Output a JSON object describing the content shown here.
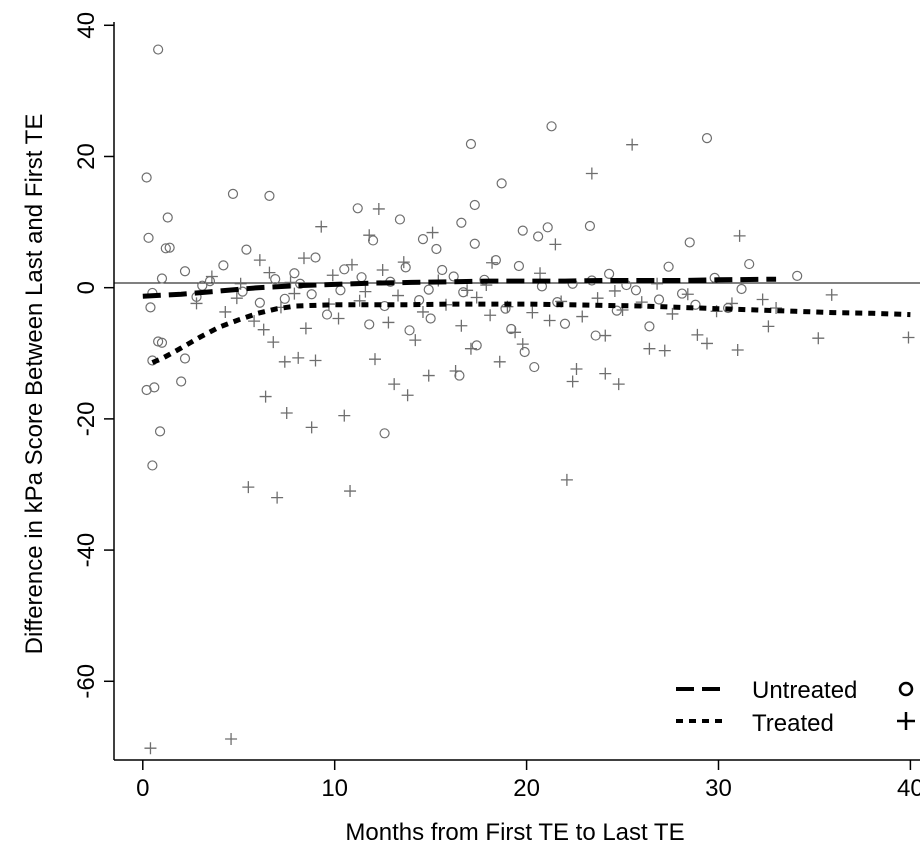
{
  "chart_data": {
    "type": "scatter",
    "title": "",
    "xlabel": "Months from First TE to Last TE",
    "ylabel": "Difference in kPa Score Between Last and First TE",
    "xlim": [
      -1.5,
      40.5
    ],
    "ylim": [
      -72,
      40.5
    ],
    "xticks": [
      "0",
      "10",
      "20",
      "30",
      "40"
    ],
    "yticks": [
      "40",
      "20",
      "0",
      "-20",
      "-40",
      "-60"
    ],
    "reference_line_y": 0,
    "grid": false,
    "legend": {
      "placement": "bottom-right"
    },
    "series": [
      {
        "name": "Untreated",
        "marker": "circle",
        "line_style": "long-dash",
        "points": [
          [
            0.8,
            36.3
          ],
          [
            21.3,
            24.6
          ],
          [
            29.4,
            22.8
          ],
          [
            17.1,
            21.9
          ],
          [
            0.2,
            16.8
          ],
          [
            18.7,
            15.9
          ],
          [
            4.7,
            14.3
          ],
          [
            6.6,
            14.0
          ],
          [
            11.2,
            12.1
          ],
          [
            17.3,
            12.6
          ],
          [
            1.3,
            10.7
          ],
          [
            13.4,
            10.4
          ],
          [
            16.6,
            9.9
          ],
          [
            23.3,
            9.4
          ],
          [
            19.8,
            8.7
          ],
          [
            21.1,
            9.2
          ],
          [
            12.0,
            7.2
          ],
          [
            0.3,
            7.6
          ],
          [
            28.5,
            6.9
          ],
          [
            14.6,
            7.4
          ],
          [
            1.2,
            6.0
          ],
          [
            1.4,
            6.1
          ],
          [
            17.3,
            6.7
          ],
          [
            20.6,
            7.8
          ],
          [
            5.4,
            5.8
          ],
          [
            15.3,
            5.9
          ],
          [
            18.4,
            4.2
          ],
          [
            31.6,
            3.6
          ],
          [
            34.1,
            1.8
          ],
          [
            24.3,
            2.1
          ],
          [
            4.2,
            3.4
          ],
          [
            9.0,
            4.6
          ],
          [
            0.5,
            -0.8
          ],
          [
            1.0,
            1.4
          ],
          [
            2.2,
            2.5
          ],
          [
            3.5,
            1.0
          ],
          [
            7.9,
            2.2
          ],
          [
            11.4,
            1.6
          ],
          [
            13.7,
            3.1
          ],
          [
            15.6,
            2.7
          ],
          [
            17.8,
            1.2
          ],
          [
            19.6,
            3.3
          ],
          [
            22.4,
            0.6
          ],
          [
            25.7,
            -0.4
          ],
          [
            27.4,
            3.2
          ],
          [
            29.8,
            1.5
          ],
          [
            31.2,
            -0.2
          ],
          [
            2.8,
            -1.4
          ],
          [
            6.1,
            -2.3
          ],
          [
            8.8,
            -1.0
          ],
          [
            12.6,
            -2.8
          ],
          [
            14.4,
            -1.9
          ],
          [
            16.7,
            -0.7
          ],
          [
            18.9,
            -3.2
          ],
          [
            21.6,
            -2.2
          ],
          [
            24.7,
            -3.5
          ],
          [
            26.9,
            -1.8
          ],
          [
            28.8,
            -2.6
          ],
          [
            30.5,
            -3.1
          ],
          [
            0.4,
            -3.0
          ],
          [
            0.2,
            -15.6
          ],
          [
            0.5,
            -11.1
          ],
          [
            0.8,
            -8.2
          ],
          [
            1.0,
            -8.4
          ],
          [
            0.6,
            -15.2
          ],
          [
            0.5,
            -27.1
          ],
          [
            0.9,
            -21.9
          ],
          [
            2.0,
            -14.3
          ],
          [
            2.2,
            -10.8
          ],
          [
            19.9,
            -9.8
          ],
          [
            20.4,
            -12.1
          ],
          [
            23.6,
            -7.3
          ],
          [
            16.5,
            -13.4
          ],
          [
            17.4,
            -8.8
          ],
          [
            12.6,
            -22.2
          ],
          [
            11.8,
            -5.6
          ],
          [
            13.9,
            -6.5
          ],
          [
            9.6,
            -4.1
          ],
          [
            15.0,
            -4.7
          ],
          [
            19.2,
            -6.3
          ],
          [
            22.0,
            -5.5
          ],
          [
            26.4,
            -5.9
          ],
          [
            8.2,
            0.6
          ],
          [
            10.3,
            -0.4
          ],
          [
            10.5,
            2.8
          ],
          [
            12.9,
            0.9
          ],
          [
            14.9,
            -0.3
          ],
          [
            16.2,
            1.7
          ],
          [
            20.8,
            0.2
          ],
          [
            23.4,
            1.1
          ],
          [
            25.2,
            0.4
          ],
          [
            28.1,
            -0.9
          ],
          [
            6.9,
            1.3
          ],
          [
            5.2,
            -0.6
          ],
          [
            3.1,
            0.3
          ],
          [
            7.4,
            -1.7
          ]
        ],
        "trend": [
          [
            0,
            -1.3
          ],
          [
            2,
            -1.0
          ],
          [
            4,
            -0.5
          ],
          [
            6,
            0.0
          ],
          [
            8,
            0.3
          ],
          [
            10,
            0.5
          ],
          [
            12,
            0.7
          ],
          [
            14,
            0.8
          ],
          [
            16,
            0.9
          ],
          [
            18,
            1.0
          ],
          [
            20,
            1.0
          ],
          [
            22,
            1.0
          ],
          [
            24,
            1.1
          ],
          [
            26,
            1.1
          ],
          [
            28,
            1.1
          ],
          [
            30,
            1.2
          ],
          [
            33,
            1.3
          ]
        ]
      },
      {
        "name": "Treated",
        "marker": "plus",
        "line_style": "short-dash",
        "points": [
          [
            0.4,
            -70.2
          ],
          [
            4.6,
            -68.8
          ],
          [
            25.5,
            21.8
          ],
          [
            23.4,
            17.4
          ],
          [
            31.1,
            7.9
          ],
          [
            12.3,
            12.0
          ],
          [
            9.3,
            9.3
          ],
          [
            21.5,
            6.6
          ],
          [
            6.1,
            4.2
          ],
          [
            15.1,
            8.4
          ],
          [
            11.8,
            8.0
          ],
          [
            8.4,
            4.5
          ],
          [
            18.2,
            3.8
          ],
          [
            13.6,
            3.9
          ],
          [
            10.9,
            3.5
          ],
          [
            5.5,
            -30.4
          ],
          [
            7.0,
            -32.0
          ],
          [
            10.8,
            -31.0
          ],
          [
            22.1,
            -29.3
          ],
          [
            6.4,
            -16.6
          ],
          [
            7.5,
            -19.1
          ],
          [
            8.8,
            -21.3
          ],
          [
            10.5,
            -19.5
          ],
          [
            13.1,
            -14.7
          ],
          [
            13.8,
            -16.4
          ],
          [
            14.9,
            -13.4
          ],
          [
            17.1,
            -9.3
          ],
          [
            18.6,
            -11.3
          ],
          [
            19.8,
            -8.6
          ],
          [
            22.4,
            -14.3
          ],
          [
            22.6,
            -12.4
          ],
          [
            24.1,
            -13.1
          ],
          [
            24.8,
            -14.7
          ],
          [
            26.4,
            -9.3
          ],
          [
            27.2,
            -9.6
          ],
          [
            28.9,
            -7.2
          ],
          [
            29.4,
            -8.5
          ],
          [
            31.0,
            -9.5
          ],
          [
            32.6,
            -5.9
          ],
          [
            35.2,
            -7.7
          ],
          [
            39.9,
            -7.6
          ],
          [
            33.0,
            -3.1
          ],
          [
            35.9,
            -1.1
          ],
          [
            24.1,
            -7.3
          ],
          [
            7.4,
            -11.3
          ],
          [
            8.1,
            -10.7
          ],
          [
            9.0,
            -11.1
          ],
          [
            12.1,
            -10.9
          ],
          [
            14.2,
            -8.0
          ],
          [
            16.3,
            -12.7
          ],
          [
            19.4,
            -6.8
          ],
          [
            21.2,
            -5.0
          ],
          [
            2.8,
            -2.4
          ],
          [
            3.6,
            1.7
          ],
          [
            4.9,
            -1.6
          ],
          [
            5.8,
            -5.1
          ],
          [
            6.3,
            -6.4
          ],
          [
            6.8,
            -8.3
          ],
          [
            7.2,
            -3.0
          ],
          [
            8.5,
            -6.2
          ],
          [
            9.7,
            -2.5
          ],
          [
            10.2,
            -4.7
          ],
          [
            11.3,
            -2.0
          ],
          [
            12.8,
            -5.3
          ],
          [
            13.3,
            -1.2
          ],
          [
            14.6,
            -3.7
          ],
          [
            15.8,
            -2.6
          ],
          [
            16.6,
            -5.8
          ],
          [
            17.4,
            -1.5
          ],
          [
            18.1,
            -4.2
          ],
          [
            19.0,
            -2.9
          ],
          [
            20.3,
            -3.8
          ],
          [
            21.8,
            -2.1
          ],
          [
            22.9,
            -4.4
          ],
          [
            23.7,
            -1.6
          ],
          [
            25.0,
            -3.4
          ],
          [
            26.0,
            -2.2
          ],
          [
            27.6,
            -4.0
          ],
          [
            28.4,
            -1.0
          ],
          [
            29.9,
            -3.6
          ],
          [
            30.7,
            -2.4
          ],
          [
            32.3,
            -1.8
          ],
          [
            6.6,
            2.3
          ],
          [
            7.7,
            0.8
          ],
          [
            9.9,
            1.9
          ],
          [
            12.5,
            2.7
          ],
          [
            15.4,
            1.1
          ],
          [
            17.9,
            0.4
          ],
          [
            20.7,
            2.2
          ],
          [
            26.8,
            0.6
          ],
          [
            4.3,
            -3.7
          ],
          [
            5.1,
            0.6
          ],
          [
            7.9,
            -0.9
          ],
          [
            11.6,
            -0.6
          ],
          [
            16.9,
            -0.4
          ],
          [
            24.6,
            -0.5
          ]
        ],
        "trend": [
          [
            0.5,
            -11.4
          ],
          [
            1,
            -10.8
          ],
          [
            2,
            -9.2
          ],
          [
            3,
            -7.5
          ],
          [
            4,
            -6.0
          ],
          [
            5,
            -4.9
          ],
          [
            6,
            -3.9
          ],
          [
            7,
            -3.2
          ],
          [
            8,
            -2.8
          ],
          [
            10,
            -2.6
          ],
          [
            12,
            -2.6
          ],
          [
            14,
            -2.6
          ],
          [
            16,
            -2.5
          ],
          [
            18,
            -2.5
          ],
          [
            20,
            -2.5
          ],
          [
            22,
            -2.6
          ],
          [
            24,
            -2.7
          ],
          [
            26,
            -2.8
          ],
          [
            28,
            -3.0
          ],
          [
            30,
            -3.2
          ],
          [
            32,
            -3.4
          ],
          [
            34,
            -3.6
          ],
          [
            36,
            -3.8
          ],
          [
            38,
            -3.9
          ],
          [
            40,
            -4.1
          ]
        ]
      }
    ]
  },
  "legend": {
    "untreated_label": "Untreated",
    "treated_label": "Treated"
  }
}
